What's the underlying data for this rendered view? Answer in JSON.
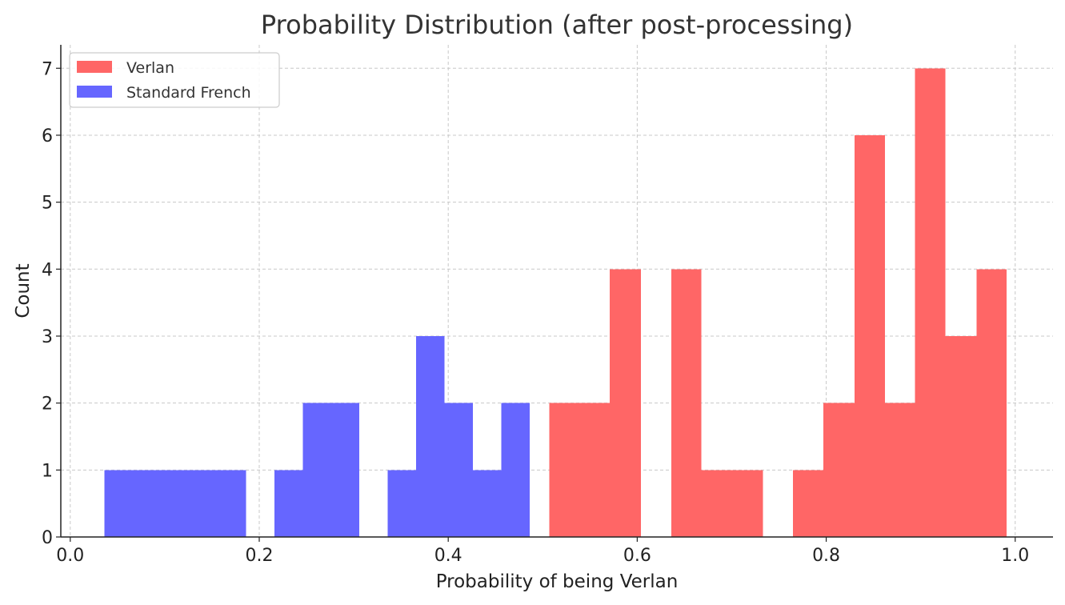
{
  "chart_data": {
    "type": "bar",
    "title": "Probability Distribution (after post-processing)",
    "xlabel": "Probability of being Verlan",
    "ylabel": "Count",
    "xlim": [
      -0.01,
      1.04
    ],
    "ylim": [
      0,
      7.35
    ],
    "xticks": [
      0.0,
      0.2,
      0.4,
      0.6,
      0.8,
      1.0
    ],
    "xtick_labels": [
      "0.0",
      "0.2",
      "0.4",
      "0.6",
      "0.8",
      "1.0"
    ],
    "yticks": [
      0,
      1,
      2,
      3,
      4,
      5,
      6,
      7
    ],
    "ytick_labels": [
      "0",
      "1",
      "2",
      "3",
      "4",
      "5",
      "6",
      "7"
    ],
    "grid": true,
    "legend_position": "top-left",
    "series": [
      {
        "name": "Verlan",
        "color": "#ff6666",
        "bins": [
          {
            "x0": 0.507,
            "x1": 0.539,
            "count": 2
          },
          {
            "x0": 0.539,
            "x1": 0.571,
            "count": 2
          },
          {
            "x0": 0.571,
            "x1": 0.604,
            "count": 4
          },
          {
            "x0": 0.636,
            "x1": 0.668,
            "count": 4
          },
          {
            "x0": 0.668,
            "x1": 0.7,
            "count": 1
          },
          {
            "x0": 0.7,
            "x1": 0.733,
            "count": 1
          },
          {
            "x0": 0.765,
            "x1": 0.797,
            "count": 1
          },
          {
            "x0": 0.797,
            "x1": 0.83,
            "count": 2
          },
          {
            "x0": 0.83,
            "x1": 0.862,
            "count": 6
          },
          {
            "x0": 0.862,
            "x1": 0.894,
            "count": 2
          },
          {
            "x0": 0.894,
            "x1": 0.926,
            "count": 7
          },
          {
            "x0": 0.926,
            "x1": 0.959,
            "count": 3
          },
          {
            "x0": 0.959,
            "x1": 0.991,
            "count": 4
          }
        ]
      },
      {
        "name": "Standard French",
        "color": "#6666ff",
        "bins": [
          {
            "x0": 0.036,
            "x1": 0.066,
            "count": 1
          },
          {
            "x0": 0.066,
            "x1": 0.096,
            "count": 1
          },
          {
            "x0": 0.096,
            "x1": 0.126,
            "count": 1
          },
          {
            "x0": 0.126,
            "x1": 0.156,
            "count": 1
          },
          {
            "x0": 0.156,
            "x1": 0.186,
            "count": 1
          },
          {
            "x0": 0.216,
            "x1": 0.246,
            "count": 1
          },
          {
            "x0": 0.246,
            "x1": 0.276,
            "count": 2
          },
          {
            "x0": 0.276,
            "x1": 0.306,
            "count": 2
          },
          {
            "x0": 0.336,
            "x1": 0.366,
            "count": 1
          },
          {
            "x0": 0.366,
            "x1": 0.396,
            "count": 3
          },
          {
            "x0": 0.396,
            "x1": 0.426,
            "count": 2
          },
          {
            "x0": 0.426,
            "x1": 0.456,
            "count": 1
          },
          {
            "x0": 0.456,
            "x1": 0.486,
            "count": 2
          }
        ]
      }
    ]
  }
}
